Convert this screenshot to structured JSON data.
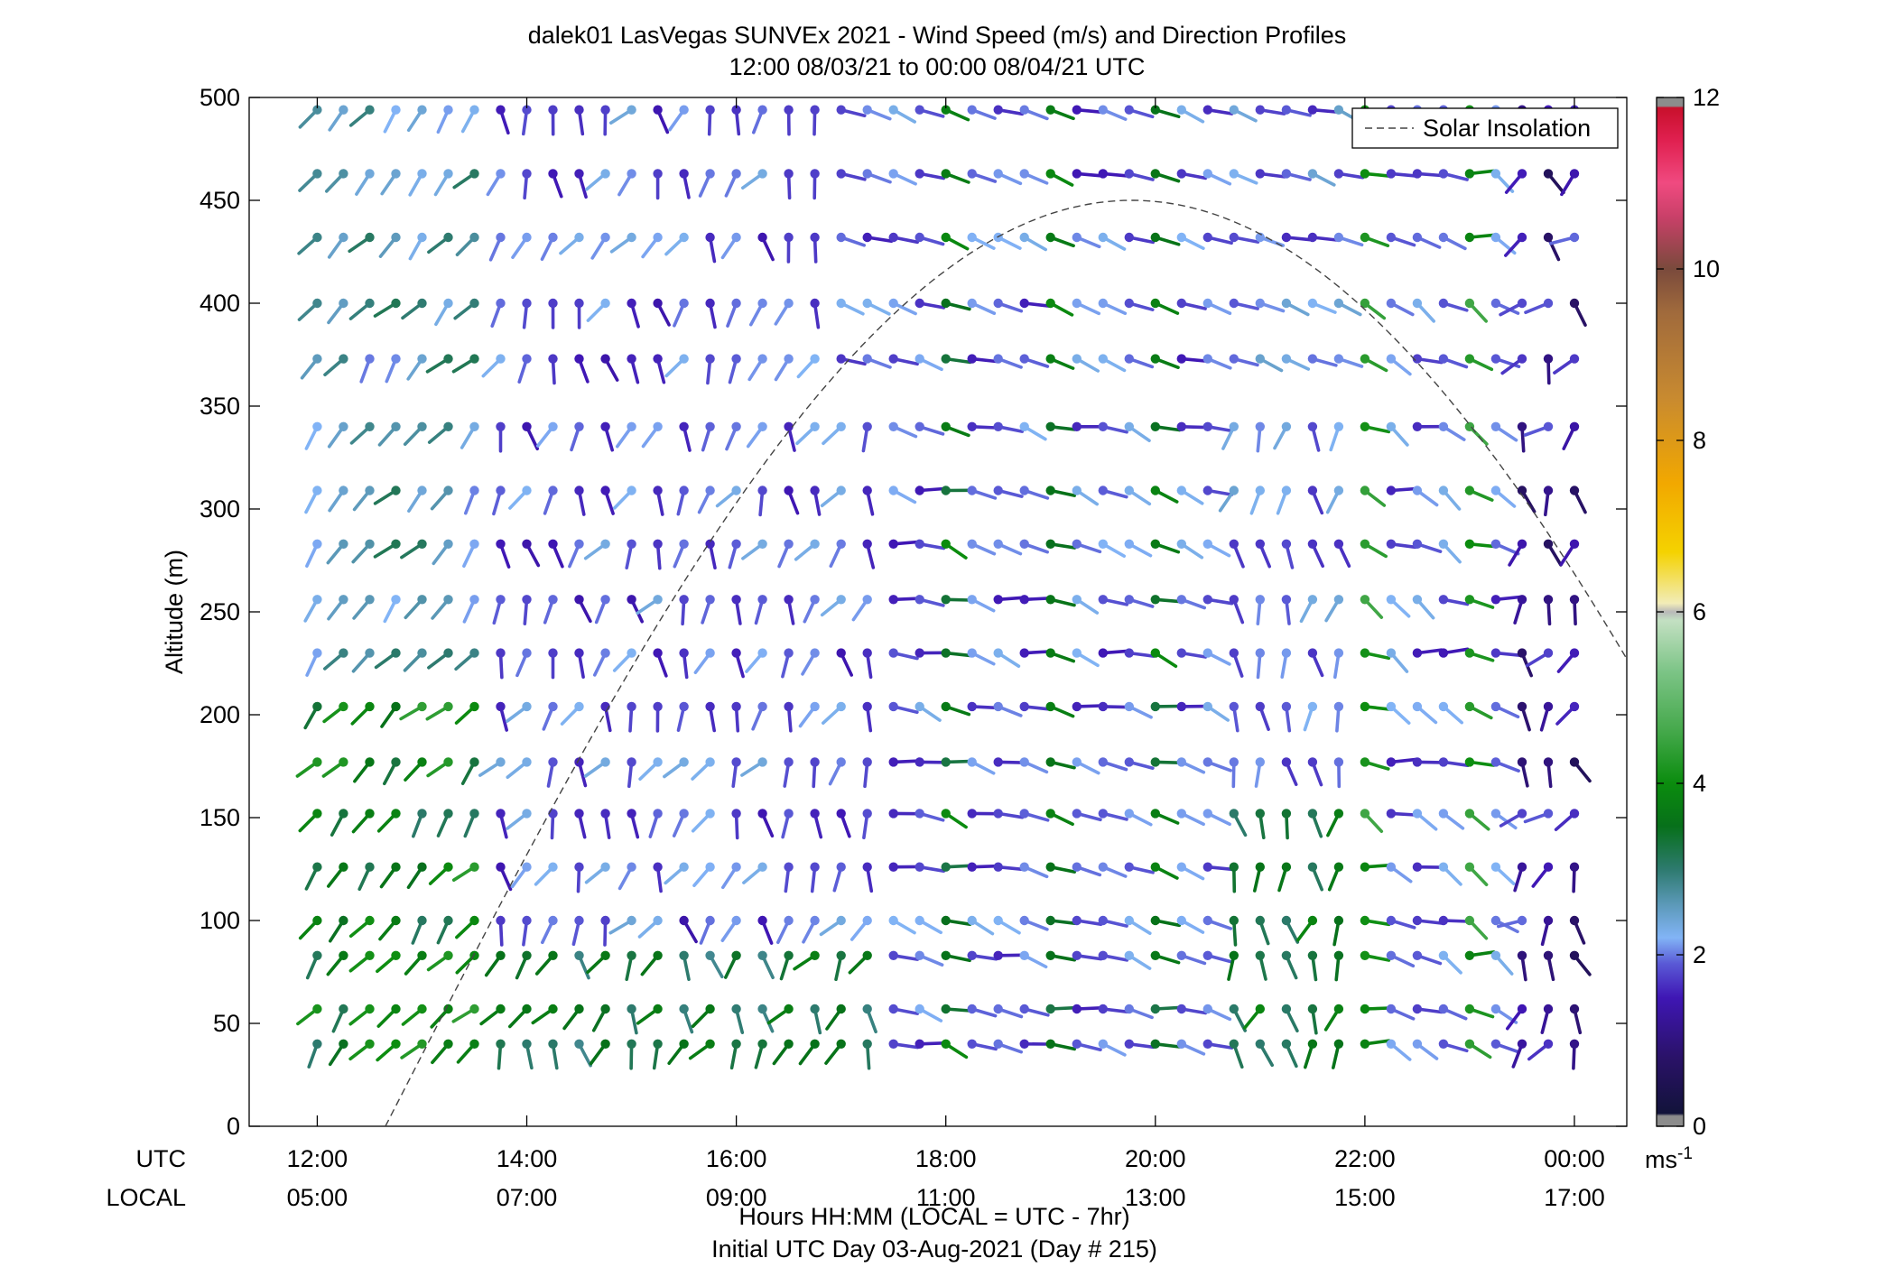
{
  "chart_data": {
    "type": "wind-barb-profile",
    "title": "dalek01 LasVegas SUNVEx 2021 - Wind Speed (m/s) and Direction Profiles",
    "subtitle": "12:00 08/03/21 to 00:00 08/04/21  UTC",
    "ylabel": "Altitude (m)",
    "xlabel": "Hours HH:MM  (LOCAL = UTC - 7hr)",
    "xlabel2": "Initial UTC Day 03-Aug-2021 (Day # 215)",
    "row_labels": {
      "utc": "UTC",
      "local": "LOCAL"
    },
    "x_ticks_utc": [
      "12:00",
      "14:00",
      "16:00",
      "18:00",
      "20:00",
      "22:00",
      "00:00"
    ],
    "x_ticks_local": [
      "05:00",
      "07:00",
      "09:00",
      "11:00",
      "13:00",
      "15:00",
      "17:00"
    ],
    "x_tick_hours": [
      12,
      14,
      16,
      18,
      20,
      22,
      24
    ],
    "xlim_hours": [
      11.35,
      24.5
    ],
    "y_ticks": [
      0,
      50,
      100,
      150,
      200,
      250,
      300,
      350,
      400,
      450,
      500
    ],
    "ylim": [
      0,
      500
    ],
    "altitudes": [
      40,
      57,
      83,
      100,
      126,
      152,
      177,
      204,
      230,
      256,
      283,
      309,
      340,
      373,
      400,
      432,
      463,
      494
    ],
    "time_start_hour": 12.0,
    "time_step_hours": 0.25,
    "time_count": 49,
    "legend": {
      "label": "Solar Insolation",
      "position": "top-right"
    },
    "solar_insolation": {
      "rise_hour": 12.65,
      "peak_hour": 19.75,
      "set_hour": 26.9,
      "peak_altitude": 450
    },
    "colorbar": {
      "label": "ms",
      "label_exponent": "-1",
      "ticks": [
        0,
        2,
        4,
        6,
        8,
        10,
        12
      ],
      "range": [
        0,
        12
      ],
      "stops": [
        {
          "v": 0.0,
          "c": "#8c8c8c"
        },
        {
          "v": 0.12,
          "c": "#8c8c8c"
        },
        {
          "v": 0.15,
          "c": "#12133a"
        },
        {
          "v": 0.8,
          "c": "#2a1268"
        },
        {
          "v": 1.5,
          "c": "#3f16b4"
        },
        {
          "v": 1.9,
          "c": "#5a5ad6"
        },
        {
          "v": 2.2,
          "c": "#82b4f6"
        },
        {
          "v": 2.6,
          "c": "#5a98b6"
        },
        {
          "v": 3.0,
          "c": "#2d7a6e"
        },
        {
          "v": 3.5,
          "c": "#07701a"
        },
        {
          "v": 4.0,
          "c": "#0b8c0e"
        },
        {
          "v": 4.6,
          "c": "#44a84a"
        },
        {
          "v": 5.3,
          "c": "#7cc486"
        },
        {
          "v": 5.9,
          "c": "#c3e0c2"
        },
        {
          "v": 6.0,
          "c": "#b8b8b8"
        },
        {
          "v": 6.1,
          "c": "#f2ecb8"
        },
        {
          "v": 6.7,
          "c": "#f4d200"
        },
        {
          "v": 7.5,
          "c": "#f2a800"
        },
        {
          "v": 8.5,
          "c": "#c88a30"
        },
        {
          "v": 9.5,
          "c": "#a06a3c"
        },
        {
          "v": 10.0,
          "c": "#7a4a3c"
        },
        {
          "v": 10.6,
          "c": "#c84068"
        },
        {
          "v": 11.0,
          "c": "#f04a80"
        },
        {
          "v": 11.5,
          "c": "#e02050"
        },
        {
          "v": 11.88,
          "c": "#c8102c"
        },
        {
          "v": 11.9,
          "c": "#8c8c8c"
        },
        {
          "v": 12.0,
          "c": "#8c8c8c"
        }
      ]
    }
  }
}
